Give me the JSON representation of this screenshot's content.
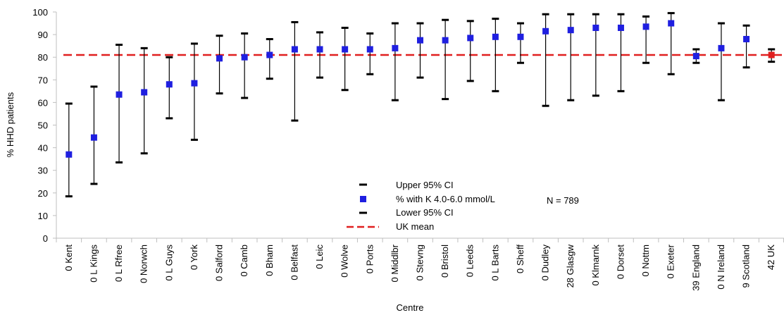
{
  "chart_data": {
    "type": "scatter",
    "xlabel": "Centre",
    "ylabel": "% HHD patients",
    "ylim": [
      0,
      100
    ],
    "yticks": [
      0,
      10,
      20,
      30,
      40,
      50,
      60,
      70,
      80,
      90,
      100
    ],
    "grid": false,
    "legend_position": "bottom-center",
    "annotation": "N = 789",
    "uk_mean": 81,
    "colors": {
      "centre_marker": "#1f1fe0",
      "uk_marker": "#e01f1f",
      "mean_line": "#e01f1f",
      "error_bar": "#000000"
    },
    "categories": [
      "0 Kent",
      "0 L Kings",
      "0 L Rfree",
      "0 Norwch",
      "0 L Guys",
      "0 York",
      "0 Salford",
      "0 Camb",
      "0 Bham",
      "0 Belfast",
      "0 Leic",
      "0 Wolve",
      "0 Ports",
      "0 Middlbr",
      "0 Stevng",
      "0 Bristol",
      "0 Leeds",
      "0 L Barts",
      "0 Sheff",
      "0 Dudley",
      "28 Glasgw",
      "0 Klmarnk",
      "0 Dorset",
      "0 Nottm",
      "0 Exeter",
      "39 England",
      "0 N Ireland",
      "9 Scotland",
      "42 UK"
    ],
    "series": [
      {
        "name": "% with K 4.0-6.0 mmol/L",
        "values": [
          37,
          44.5,
          63.5,
          64.5,
          68,
          68.5,
          79.5,
          80,
          81,
          83.5,
          83.5,
          83.5,
          83.5,
          84,
          87.5,
          87.5,
          88.5,
          89,
          89,
          91.5,
          92,
          93,
          93,
          93.5,
          95,
          80.5,
          84,
          88,
          81
        ],
        "highlight_index": 28
      },
      {
        "name": "Upper 95% CI",
        "values": [
          59.5,
          67,
          85.5,
          84,
          80,
          86,
          89.5,
          90.5,
          88,
          95.5,
          91,
          93,
          90.5,
          95,
          95,
          96.5,
          96,
          97,
          95,
          99,
          99,
          99,
          99,
          98,
          99.5,
          83.5,
          95,
          94,
          83.5
        ]
      },
      {
        "name": "Lower 95% CI",
        "values": [
          18.5,
          24,
          33.5,
          37.5,
          53,
          43.5,
          64,
          62,
          70.5,
          52,
          71,
          65.5,
          72.5,
          61,
          71,
          61.5,
          69.5,
          65,
          77.5,
          58.5,
          61,
          63,
          65,
          77.5,
          72.5,
          77.5,
          61,
          75.5,
          78
        ]
      },
      {
        "name": "UK mean",
        "values": []
      }
    ],
    "legend": [
      "Upper 95% CI",
      "% with K 4.0-6.0 mmol/L",
      "Lower 95% CI",
      "UK mean"
    ]
  }
}
